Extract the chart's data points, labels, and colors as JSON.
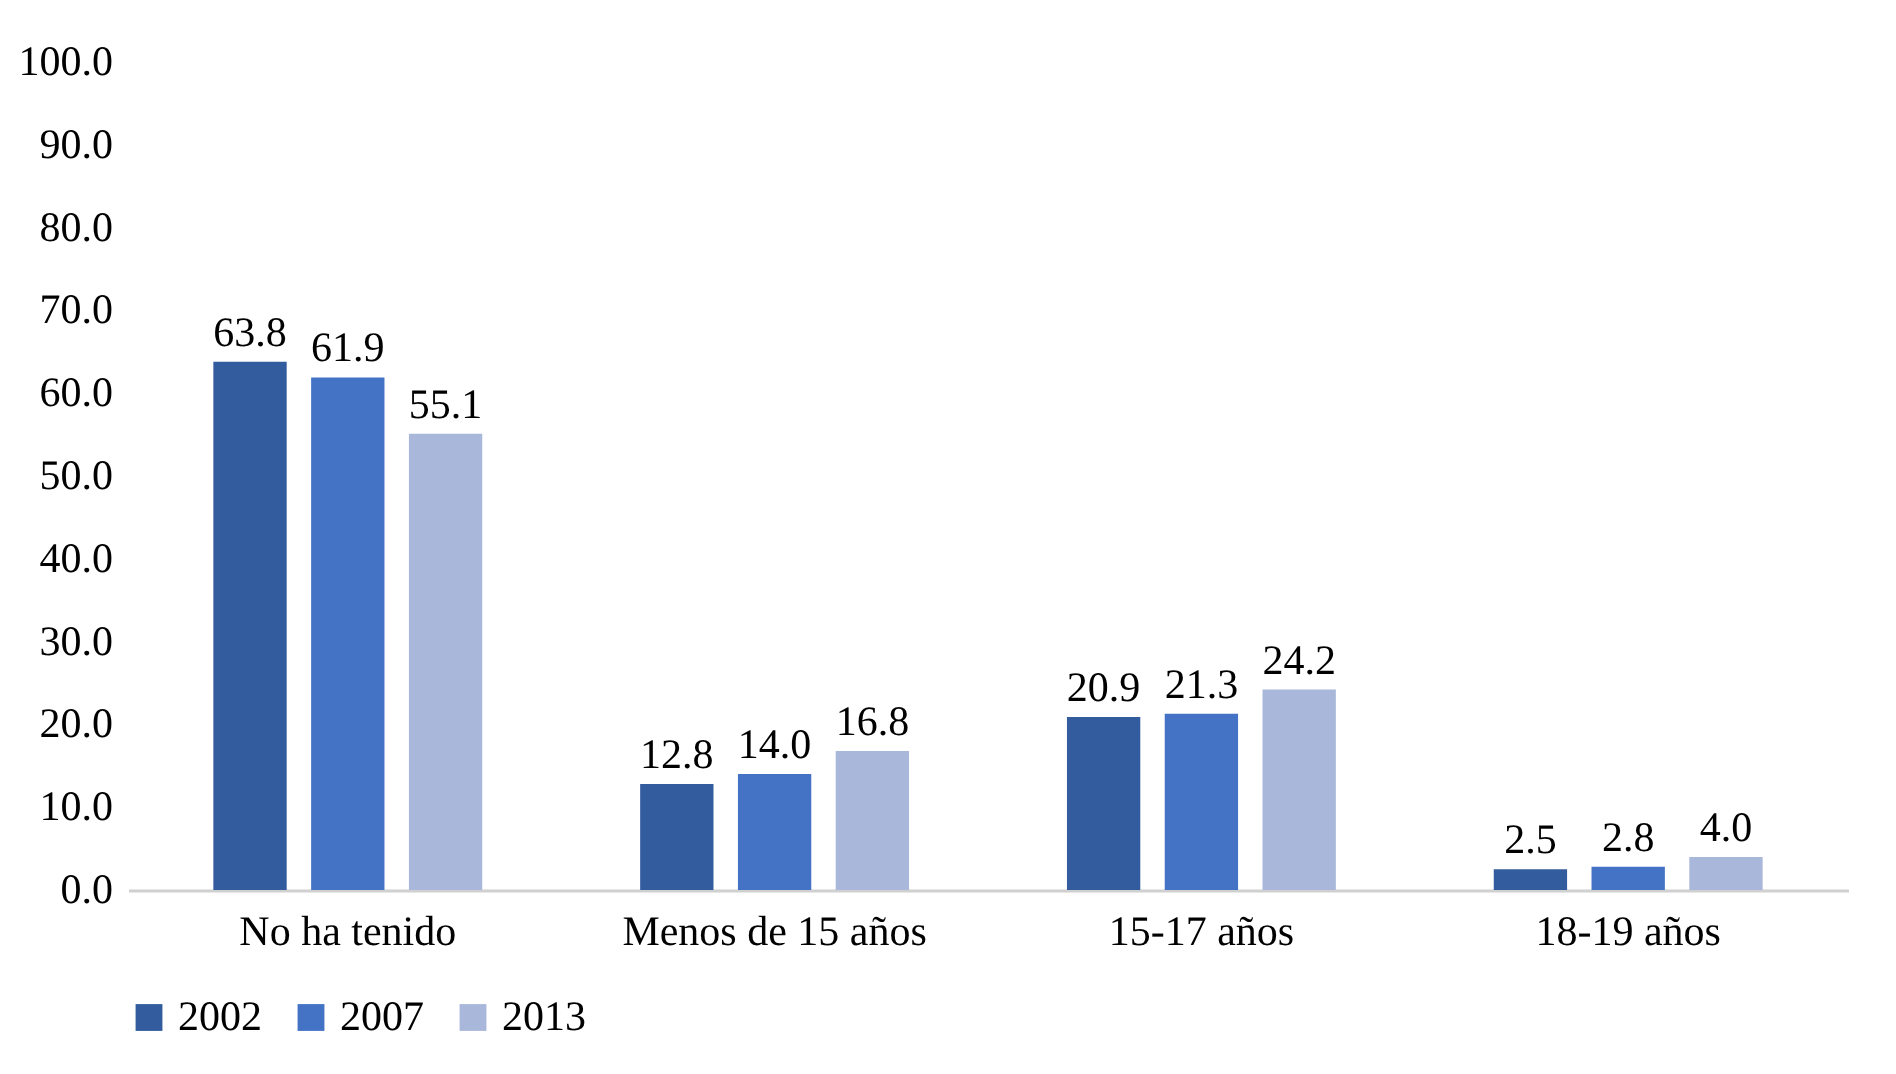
{
  "chart_data": {
    "type": "bar",
    "categories": [
      "No ha tenido",
      "Menos de 15 años",
      "15-17 años",
      "18-19 años"
    ],
    "series": [
      {
        "name": "2002",
        "color": "#335c9e",
        "values": [
          63.8,
          12.8,
          20.9,
          2.5
        ],
        "value_labels": [
          "63.8",
          "12.8",
          "20.9",
          "2.5"
        ]
      },
      {
        "name": "2007",
        "color": "#4472c4",
        "values": [
          61.9,
          14.0,
          21.3,
          2.8
        ],
        "value_labels": [
          "61.9",
          "14.0",
          "21.3",
          "2.8"
        ]
      },
      {
        "name": "2013",
        "color": "#a9b7db",
        "values": [
          55.1,
          16.8,
          24.2,
          4.0
        ],
        "value_labels": [
          "55.1",
          "16.8",
          "24.2",
          "4.0"
        ]
      }
    ],
    "ylim": [
      0,
      100
    ],
    "yticks": [
      {
        "value": 0,
        "label": "0.0"
      },
      {
        "value": 10,
        "label": "10.0"
      },
      {
        "value": 20,
        "label": "20.0"
      },
      {
        "value": 30,
        "label": "30.0"
      },
      {
        "value": 40,
        "label": "40.0"
      },
      {
        "value": 50,
        "label": "50.0"
      },
      {
        "value": 60,
        "label": "60.0"
      },
      {
        "value": 70,
        "label": "70.0"
      },
      {
        "value": 80,
        "label": "80.0"
      },
      {
        "value": 90,
        "label": "90.0"
      },
      {
        "value": 100,
        "label": "100.0"
      }
    ],
    "legend": "bottom"
  }
}
